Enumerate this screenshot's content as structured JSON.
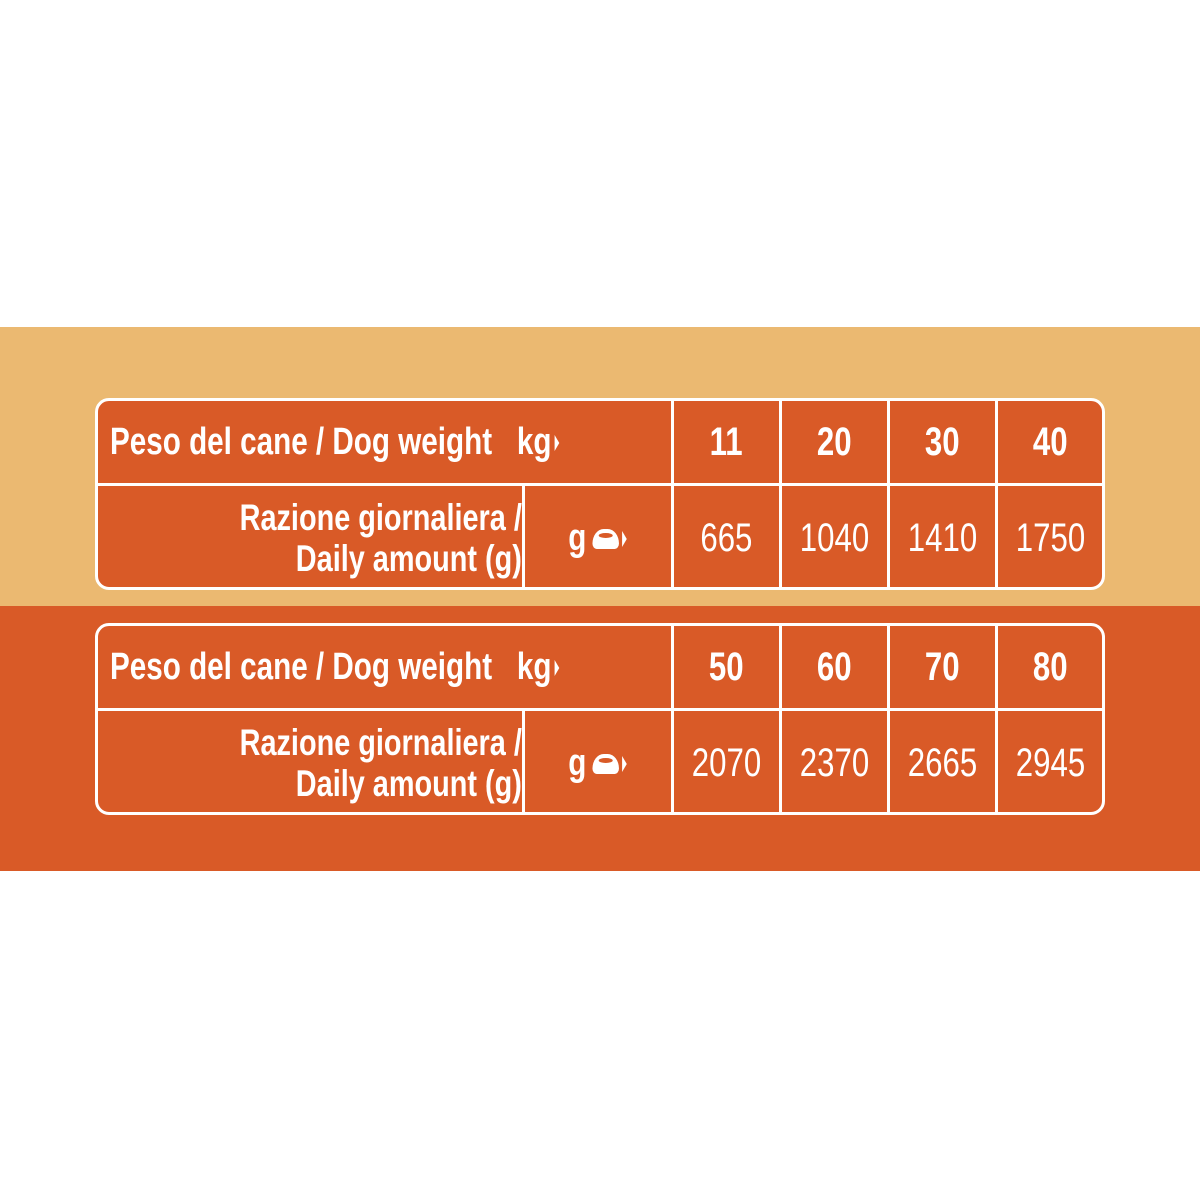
{
  "colors": {
    "light_band": "#EBB971",
    "accent_orange": "#D95A27",
    "text": "#FFFFFF"
  },
  "tables": [
    {
      "weight_label": "Peso del cane / Dog weight",
      "weight_unit": "kg",
      "amount_label_line1": "Razione giornaliera /",
      "amount_label_line2": "Daily amount (g)",
      "amount_unit": "g",
      "amount_icon": "food-bowl-icon",
      "weights": [
        "11",
        "20",
        "30",
        "40"
      ],
      "amounts": [
        "665",
        "1040",
        "1410",
        "1750"
      ]
    },
    {
      "weight_label": "Peso del cane / Dog weight",
      "weight_unit": "kg",
      "amount_label_line1": "Razione giornaliera /",
      "amount_label_line2": "Daily amount (g)",
      "amount_unit": "g",
      "amount_icon": "food-bowl-icon",
      "weights": [
        "50",
        "60",
        "70",
        "80"
      ],
      "amounts": [
        "2070",
        "2370",
        "2665",
        "2945"
      ]
    }
  ]
}
